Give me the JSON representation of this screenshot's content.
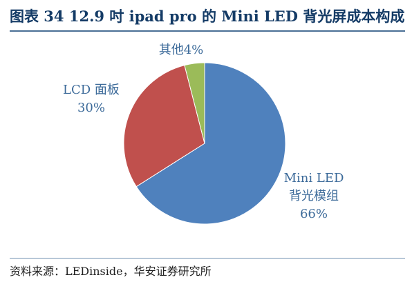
{
  "header": {
    "title": "图表 34 12.9 吋 ipad pro 的 Mini LED 背光屏成本构成"
  },
  "footer": {
    "source": "资料来源：LEDinside，华安证券研究所"
  },
  "chart_data": {
    "type": "pie",
    "title": "",
    "slices": [
      {
        "label_lines": [
          "Mini LED",
          "背光模组"
        ],
        "percent_label": "66%",
        "value": 66,
        "color": "#4f81bd"
      },
      {
        "label_lines": [
          "LCD 面板"
        ],
        "percent_label": "30%",
        "value": 30,
        "color": "#c0504d"
      },
      {
        "label_lines": [
          "其他4%"
        ],
        "percent_label": "",
        "value": 4,
        "color": "#9bbb59"
      }
    ]
  }
}
